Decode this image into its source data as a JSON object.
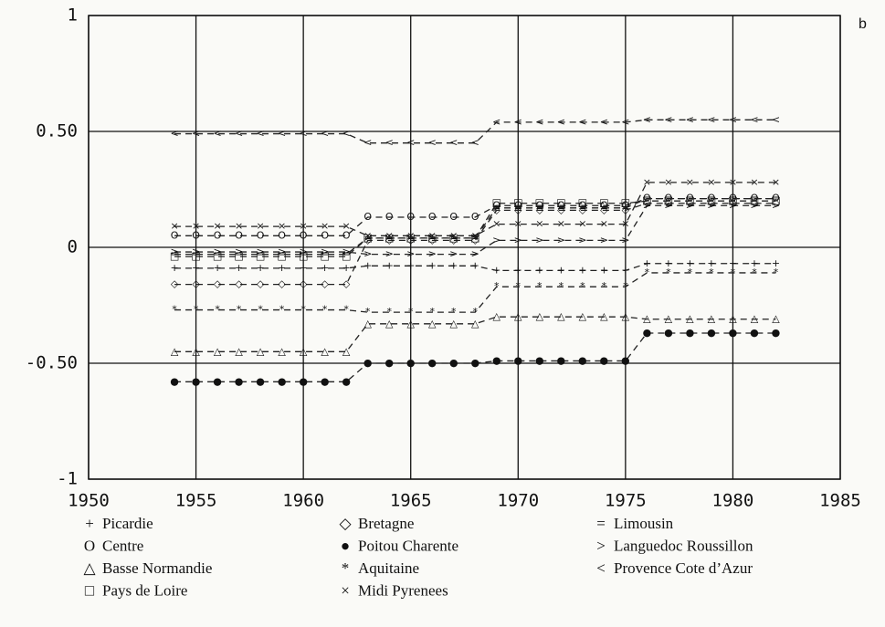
{
  "chart_data": {
    "type": "line",
    "annotation": "b",
    "x": [
      1954,
      1955,
      1956,
      1957,
      1958,
      1959,
      1960,
      1961,
      1962,
      1963,
      1964,
      1965,
      1966,
      1967,
      1968,
      1969,
      1970,
      1971,
      1972,
      1973,
      1974,
      1975,
      1976,
      1977,
      1978,
      1979,
      1980,
      1981,
      1982
    ],
    "xlim": [
      1950,
      1985
    ],
    "xticks": [
      1950,
      1955,
      1960,
      1965,
      1970,
      1975,
      1980,
      1985
    ],
    "ylim": [
      -1,
      1
    ],
    "yticks": [
      1,
      {
        "value": 0.5,
        "label": "0.50"
      },
      0,
      {
        "value": -0.5,
        "label": "-0.50"
      },
      -1
    ],
    "grid": true,
    "series": [
      {
        "name": "Picardie",
        "marker": "+",
        "color": "#222222",
        "values": [
          -0.09,
          -0.09,
          -0.09,
          -0.09,
          -0.09,
          -0.09,
          -0.09,
          -0.09,
          -0.09,
          -0.08,
          -0.08,
          -0.08,
          -0.08,
          -0.08,
          -0.08,
          -0.1,
          -0.1,
          -0.1,
          -0.1,
          -0.1,
          -0.1,
          -0.1,
          -0.07,
          -0.07,
          -0.07,
          -0.07,
          -0.07,
          -0.07,
          -0.07
        ]
      },
      {
        "name": "Centre",
        "marker": "O",
        "color": "#222222",
        "values": [
          0.05,
          0.05,
          0.05,
          0.05,
          0.05,
          0.05,
          0.05,
          0.05,
          0.05,
          0.13,
          0.13,
          0.13,
          0.13,
          0.13,
          0.13,
          0.18,
          0.18,
          0.18,
          0.18,
          0.18,
          0.18,
          0.18,
          0.21,
          0.21,
          0.21,
          0.21,
          0.21,
          0.21,
          0.21
        ]
      },
      {
        "name": "Basse Normandie",
        "marker": "△",
        "color": "#222222",
        "values": [
          -0.45,
          -0.45,
          -0.45,
          -0.45,
          -0.45,
          -0.45,
          -0.45,
          -0.45,
          -0.45,
          -0.33,
          -0.33,
          -0.33,
          -0.33,
          -0.33,
          -0.33,
          -0.3,
          -0.3,
          -0.3,
          -0.3,
          -0.3,
          -0.3,
          -0.3,
          -0.31,
          -0.31,
          -0.31,
          -0.31,
          -0.31,
          -0.31,
          -0.31
        ]
      },
      {
        "name": "Pays de Loire",
        "marker": "□",
        "color": "#222222",
        "values": [
          -0.04,
          -0.04,
          -0.04,
          -0.04,
          -0.04,
          -0.04,
          -0.04,
          -0.04,
          -0.04,
          0.04,
          0.04,
          0.04,
          0.04,
          0.04,
          0.04,
          0.19,
          0.19,
          0.19,
          0.19,
          0.19,
          0.19,
          0.19,
          0.2,
          0.2,
          0.2,
          0.2,
          0.2,
          0.2,
          0.2
        ]
      },
      {
        "name": "Bretagne",
        "marker": "◇",
        "color": "#222222",
        "values": [
          -0.16,
          -0.16,
          -0.16,
          -0.16,
          -0.16,
          -0.16,
          -0.16,
          -0.16,
          -0.16,
          0.03,
          0.03,
          0.03,
          0.03,
          0.03,
          0.03,
          0.16,
          0.16,
          0.16,
          0.16,
          0.16,
          0.16,
          0.16,
          0.19,
          0.19,
          0.19,
          0.19,
          0.19,
          0.19,
          0.19
        ]
      },
      {
        "name": "Poitou Charente",
        "marker": "●",
        "color": "#222222",
        "values": [
          -0.58,
          -0.58,
          -0.58,
          -0.58,
          -0.58,
          -0.58,
          -0.58,
          -0.58,
          -0.58,
          -0.5,
          -0.5,
          -0.5,
          -0.5,
          -0.5,
          -0.5,
          -0.49,
          -0.49,
          -0.49,
          -0.49,
          -0.49,
          -0.49,
          -0.49,
          -0.37,
          -0.37,
          -0.37,
          -0.37,
          -0.37,
          -0.37,
          -0.37
        ]
      },
      {
        "name": "Aquitaine",
        "marker": "*",
        "color": "#222222",
        "values": [
          -0.27,
          -0.27,
          -0.27,
          -0.27,
          -0.27,
          -0.27,
          -0.27,
          -0.27,
          -0.27,
          -0.28,
          -0.28,
          -0.28,
          -0.28,
          -0.28,
          -0.28,
          -0.17,
          -0.17,
          -0.17,
          -0.17,
          -0.17,
          -0.17,
          -0.17,
          -0.11,
          -0.11,
          -0.11,
          -0.11,
          -0.11,
          -0.11,
          -0.11
        ]
      },
      {
        "name": "Midi Pyrenees",
        "marker": "×",
        "color": "#222222",
        "values": [
          0.09,
          0.09,
          0.09,
          0.09,
          0.09,
          0.09,
          0.09,
          0.09,
          0.09,
          0.05,
          0.05,
          0.05,
          0.05,
          0.05,
          0.05,
          0.1,
          0.1,
          0.1,
          0.1,
          0.1,
          0.1,
          0.1,
          0.28,
          0.28,
          0.28,
          0.28,
          0.28,
          0.28,
          0.28
        ]
      },
      {
        "name": "Limousin",
        "marker": "=",
        "color": "#222222",
        "values": [
          -0.03,
          -0.03,
          -0.03,
          -0.03,
          -0.03,
          -0.03,
          -0.03,
          -0.03,
          -0.03,
          0.04,
          0.04,
          0.04,
          0.04,
          0.04,
          0.04,
          0.17,
          0.17,
          0.17,
          0.17,
          0.17,
          0.17,
          0.17,
          0.21,
          0.21,
          0.21,
          0.21,
          0.21,
          0.21,
          0.21
        ]
      },
      {
        "name": "Languedoc Roussillon",
        "marker": ">",
        "color": "#222222",
        "values": [
          -0.02,
          -0.02,
          -0.02,
          -0.02,
          -0.02,
          -0.02,
          -0.02,
          -0.02,
          -0.02,
          -0.03,
          -0.03,
          -0.03,
          -0.03,
          -0.03,
          -0.03,
          0.03,
          0.03,
          0.03,
          0.03,
          0.03,
          0.03,
          0.03,
          0.18,
          0.18,
          0.18,
          0.18,
          0.18,
          0.18,
          0.18
        ]
      },
      {
        "name": "Provence Cote d’Azur",
        "marker": "<",
        "color": "#222222",
        "values": [
          0.49,
          0.49,
          0.49,
          0.49,
          0.49,
          0.49,
          0.49,
          0.49,
          0.49,
          0.45,
          0.45,
          0.45,
          0.45,
          0.45,
          0.45,
          0.54,
          0.54,
          0.54,
          0.54,
          0.54,
          0.54,
          0.54,
          0.55,
          0.55,
          0.55,
          0.55,
          0.55,
          0.55,
          0.55
        ]
      }
    ]
  }
}
